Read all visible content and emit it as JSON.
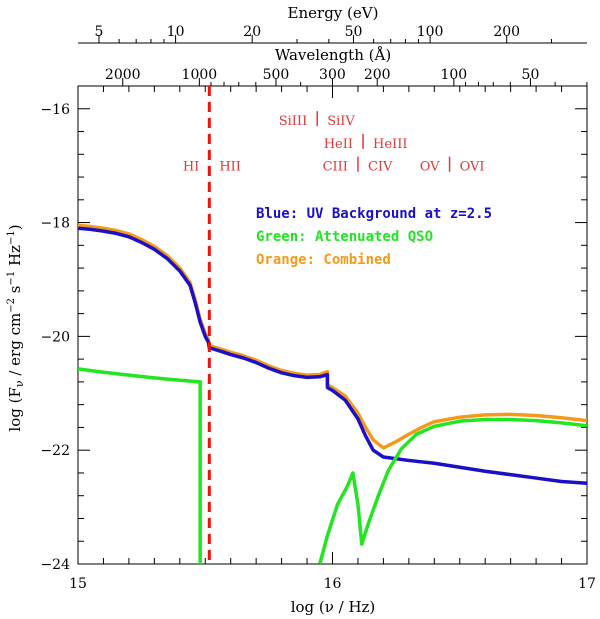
{
  "chart_data": {
    "type": "line",
    "xlabel": "log (ν / Hz)",
    "ylabel": "log (F_ν / erg cm^-2 s^-1 Hz^-1)",
    "ylabel_parts": {
      "pre": "log (F",
      "sub": "ν",
      "mid": " / erg cm",
      "exp1": "−2",
      "s": " s",
      "exp2": "−1",
      "hz": " Hz",
      "exp3": "−1",
      "post": ")"
    },
    "xlim": [
      15,
      17
    ],
    "ylim": [
      -24,
      -15.6
    ],
    "x_ticks": [
      {
        "value": 15,
        "label": "15"
      },
      {
        "value": 16,
        "label": "16"
      },
      {
        "value": 17,
        "label": "17"
      }
    ],
    "y_ticks": [
      {
        "value": -24,
        "label": "−24"
      },
      {
        "value": -22,
        "label": "−22"
      },
      {
        "value": -20,
        "label": "−20"
      },
      {
        "value": -18,
        "label": "−18"
      },
      {
        "value": -16,
        "label": "−16"
      }
    ],
    "energy_axis": {
      "title": "Energy (eV)",
      "ticks": [
        {
          "value": 5,
          "label": "5"
        },
        {
          "value": 10,
          "label": "10"
        },
        {
          "value": 20,
          "label": "20"
        },
        {
          "value": 50,
          "label": "50"
        },
        {
          "value": 100,
          "label": "100"
        },
        {
          "value": 200,
          "label": "200"
        }
      ]
    },
    "wavelength_axis": {
      "title": "Wavelength (Å)",
      "ticks": [
        {
          "value": 2000,
          "label": "2000"
        },
        {
          "value": 1000,
          "label": "1000"
        },
        {
          "value": 500,
          "label": "500"
        },
        {
          "value": 300,
          "label": "300"
        },
        {
          "value": 200,
          "label": "200"
        },
        {
          "value": 100,
          "label": "100"
        },
        {
          "value": 50,
          "label": "50"
        }
      ]
    },
    "vline": {
      "x": 15.516,
      "color": "#ee1111",
      "style": "dashed"
    },
    "ion_edges": [
      {
        "x": 15.516,
        "left": "HI",
        "right": "HII",
        "y": -17.0
      },
      {
        "x": 15.94,
        "left": "SiIII",
        "right": "SiIV",
        "y": -16.2
      },
      {
        "x": 16.12,
        "left": "HeII",
        "right": "HeIII",
        "y": -16.6
      },
      {
        "x": 16.1,
        "left": "CIII",
        "right": "CIV",
        "y": -17.0
      },
      {
        "x": 16.46,
        "left": "OV",
        "right": "OVI",
        "y": -17.0
      }
    ],
    "ion_color": "#e03a3a",
    "legend": [
      {
        "text": "Blue: UV Background at z=2.5",
        "color": "#1b0fc8"
      },
      {
        "text": "Green: Attenuated QSO",
        "color": "#22e622"
      },
      {
        "text": "Orange: Combined",
        "color": "#f39a1a"
      }
    ],
    "series": [
      {
        "name": "Orange: Combined",
        "color": "#f39a1a",
        "points": [
          [
            15.0,
            -18.05
          ],
          [
            15.05,
            -18.07
          ],
          [
            15.1,
            -18.1
          ],
          [
            15.15,
            -18.14
          ],
          [
            15.2,
            -18.2
          ],
          [
            15.25,
            -18.3
          ],
          [
            15.3,
            -18.42
          ],
          [
            15.35,
            -18.58
          ],
          [
            15.4,
            -18.8
          ],
          [
            15.44,
            -19.05
          ],
          [
            15.46,
            -19.35
          ],
          [
            15.48,
            -19.7
          ],
          [
            15.5,
            -19.95
          ],
          [
            15.512,
            -20.05
          ],
          [
            15.516,
            -20.16
          ],
          [
            15.56,
            -20.22
          ],
          [
            15.6,
            -20.28
          ],
          [
            15.65,
            -20.34
          ],
          [
            15.7,
            -20.42
          ],
          [
            15.75,
            -20.52
          ],
          [
            15.8,
            -20.6
          ],
          [
            15.85,
            -20.65
          ],
          [
            15.9,
            -20.68
          ],
          [
            15.95,
            -20.67
          ],
          [
            15.98,
            -20.62
          ],
          [
            15.98,
            -20.85
          ],
          [
            16.0,
            -20.9
          ],
          [
            16.05,
            -21.05
          ],
          [
            16.1,
            -21.35
          ],
          [
            16.13,
            -21.6
          ],
          [
            16.16,
            -21.82
          ],
          [
            16.2,
            -21.96
          ],
          [
            16.25,
            -21.85
          ],
          [
            16.3,
            -21.72
          ],
          [
            16.35,
            -21.6
          ],
          [
            16.4,
            -21.5
          ],
          [
            16.5,
            -21.42
          ],
          [
            16.6,
            -21.38
          ],
          [
            16.7,
            -21.37
          ],
          [
            16.8,
            -21.39
          ],
          [
            16.9,
            -21.43
          ],
          [
            17.0,
            -21.48
          ]
        ]
      },
      {
        "name": "Blue: UV Background at z=2.5",
        "color": "#1b0fc8",
        "points": [
          [
            15.0,
            -18.1
          ],
          [
            15.05,
            -18.12
          ],
          [
            15.1,
            -18.15
          ],
          [
            15.15,
            -18.19
          ],
          [
            15.2,
            -18.25
          ],
          [
            15.25,
            -18.35
          ],
          [
            15.3,
            -18.47
          ],
          [
            15.35,
            -18.63
          ],
          [
            15.4,
            -18.85
          ],
          [
            15.44,
            -19.1
          ],
          [
            15.46,
            -19.4
          ],
          [
            15.48,
            -19.75
          ],
          [
            15.5,
            -20.0
          ],
          [
            15.512,
            -20.1
          ],
          [
            15.516,
            -20.2
          ],
          [
            15.56,
            -20.26
          ],
          [
            15.6,
            -20.32
          ],
          [
            15.65,
            -20.38
          ],
          [
            15.7,
            -20.46
          ],
          [
            15.75,
            -20.56
          ],
          [
            15.8,
            -20.64
          ],
          [
            15.85,
            -20.69
          ],
          [
            15.9,
            -20.72
          ],
          [
            15.95,
            -20.71
          ],
          [
            15.98,
            -20.67
          ],
          [
            15.98,
            -20.9
          ],
          [
            16.0,
            -20.95
          ],
          [
            16.05,
            -21.12
          ],
          [
            16.1,
            -21.45
          ],
          [
            16.13,
            -21.75
          ],
          [
            16.16,
            -22.0
          ],
          [
            16.2,
            -22.12
          ],
          [
            16.3,
            -22.18
          ],
          [
            16.4,
            -22.23
          ],
          [
            16.5,
            -22.3
          ],
          [
            16.6,
            -22.37
          ],
          [
            16.7,
            -22.43
          ],
          [
            16.8,
            -22.49
          ],
          [
            16.9,
            -22.55
          ],
          [
            17.0,
            -22.58
          ]
        ]
      },
      {
        "name": "Green: Attenuated QSO",
        "color": "#22e622",
        "points": [
          [
            15.0,
            -20.57
          ],
          [
            15.1,
            -20.63
          ],
          [
            15.2,
            -20.68
          ],
          [
            15.3,
            -20.73
          ],
          [
            15.4,
            -20.77
          ],
          [
            15.48,
            -20.8
          ],
          [
            15.48,
            -24.0
          ]
        ]
      },
      {
        "name": "Green: Attenuated QSO (high energy)",
        "color": "#22e622",
        "points": [
          [
            15.95,
            -24.0
          ],
          [
            15.98,
            -23.5
          ],
          [
            16.02,
            -22.95
          ],
          [
            16.06,
            -22.62
          ],
          [
            16.08,
            -22.4
          ],
          [
            16.1,
            -22.95
          ],
          [
            16.115,
            -23.65
          ],
          [
            16.14,
            -23.3
          ],
          [
            16.18,
            -22.8
          ],
          [
            16.22,
            -22.35
          ],
          [
            16.27,
            -21.98
          ],
          [
            16.33,
            -21.72
          ],
          [
            16.4,
            -21.58
          ],
          [
            16.5,
            -21.49
          ],
          [
            16.6,
            -21.46
          ],
          [
            16.7,
            -21.46
          ],
          [
            16.8,
            -21.48
          ],
          [
            16.9,
            -21.52
          ],
          [
            17.0,
            -21.57
          ]
        ]
      }
    ]
  }
}
